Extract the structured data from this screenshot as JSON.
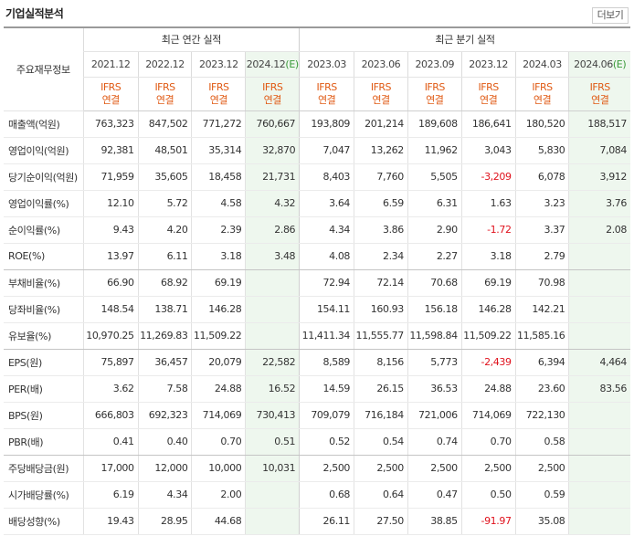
{
  "section_title": "기업실적분석",
  "more_label": "더보기",
  "table_header": {
    "row_head": "주요재무정보",
    "annual_group": "최근 연간 실적",
    "quarter_group": "최근 분기 실적",
    "periods": [
      {
        "label": "2021.12",
        "est": false
      },
      {
        "label": "2022.12",
        "est": false
      },
      {
        "label": "2023.12",
        "est": false
      },
      {
        "label": "2024.12",
        "est": true
      },
      {
        "label": "2023.03",
        "est": false
      },
      {
        "label": "2023.06",
        "est": false
      },
      {
        "label": "2023.09",
        "est": false
      },
      {
        "label": "2023.12",
        "est": false
      },
      {
        "label": "2024.03",
        "est": false
      },
      {
        "label": "2024.06",
        "est": true
      }
    ],
    "est_mark": "(E)",
    "basis_line1": "IFRS",
    "basis_line2": "연결"
  },
  "rows": [
    {
      "label": "매출액(억원)",
      "values": [
        "763,323",
        "847,502",
        "771,272",
        "760,667",
        "193,809",
        "201,214",
        "189,608",
        "186,641",
        "180,520",
        "188,517"
      ]
    },
    {
      "label": "영업이익(억원)",
      "values": [
        "92,381",
        "48,501",
        "35,314",
        "32,870",
        "7,047",
        "13,262",
        "11,962",
        "3,043",
        "5,830",
        "7,084"
      ]
    },
    {
      "label": "당기순이익(억원)",
      "values": [
        "71,959",
        "35,605",
        "18,458",
        "21,731",
        "8,403",
        "7,760",
        "5,505",
        "-3,209",
        "6,078",
        "3,912"
      ]
    },
    {
      "label": "영업이익률(%)",
      "values": [
        "12.10",
        "5.72",
        "4.58",
        "4.32",
        "3.64",
        "6.59",
        "6.31",
        "1.63",
        "3.23",
        "3.76"
      ]
    },
    {
      "label": "순이익률(%)",
      "values": [
        "9.43",
        "4.20",
        "2.39",
        "2.86",
        "4.34",
        "3.86",
        "2.90",
        "-1.72",
        "3.37",
        "2.08"
      ]
    },
    {
      "label": "ROE(%)",
      "values": [
        "13.97",
        "6.11",
        "3.18",
        "3.48",
        "4.08",
        "2.34",
        "2.27",
        "3.18",
        "2.79",
        ""
      ]
    },
    {
      "label": "부채비율(%)",
      "values": [
        "66.90",
        "68.92",
        "69.19",
        "",
        "72.94",
        "72.14",
        "70.68",
        "69.19",
        "70.98",
        ""
      ]
    },
    {
      "label": "당좌비율(%)",
      "values": [
        "148.54",
        "138.71",
        "146.28",
        "",
        "154.11",
        "160.93",
        "156.18",
        "146.28",
        "142.21",
        ""
      ]
    },
    {
      "label": "유보율(%)",
      "values": [
        "10,970.25",
        "11,269.83",
        "11,509.22",
        "",
        "11,411.34",
        "11,555.77",
        "11,598.84",
        "11,509.22",
        "11,585.16",
        ""
      ]
    },
    {
      "label": "EPS(원)",
      "values": [
        "75,897",
        "36,457",
        "20,079",
        "22,582",
        "8,589",
        "8,156",
        "5,773",
        "-2,439",
        "6,394",
        "4,464"
      ]
    },
    {
      "label": "PER(배)",
      "values": [
        "3.62",
        "7.58",
        "24.88",
        "16.52",
        "14.59",
        "26.15",
        "36.53",
        "24.88",
        "23.60",
        "83.56"
      ]
    },
    {
      "label": "BPS(원)",
      "values": [
        "666,803",
        "692,323",
        "714,069",
        "730,413",
        "709,079",
        "716,184",
        "721,006",
        "714,069",
        "722,130",
        ""
      ]
    },
    {
      "label": "PBR(배)",
      "values": [
        "0.41",
        "0.40",
        "0.70",
        "0.51",
        "0.52",
        "0.54",
        "0.74",
        "0.70",
        "0.58",
        ""
      ]
    },
    {
      "label": "주당배당금(원)",
      "values": [
        "17,000",
        "12,000",
        "10,000",
        "10,031",
        "2,500",
        "2,500",
        "2,500",
        "2,500",
        "2,500",
        ""
      ]
    },
    {
      "label": "시가배당률(%)",
      "values": [
        "6.19",
        "4.34",
        "2.00",
        "",
        "0.68",
        "0.64",
        "0.47",
        "0.50",
        "0.59",
        ""
      ]
    },
    {
      "label": "배당성향(%)",
      "values": [
        "19.43",
        "28.95",
        "44.68",
        "",
        "26.11",
        "27.50",
        "38.85",
        "-91.97",
        "35.08",
        ""
      ]
    }
  ],
  "colors": {
    "ifrs_orange": "#e05a14",
    "negative_red": "#e0121d",
    "estimate_bg": "#eef7ee",
    "estimate_mark": "#3a9a3a"
  }
}
